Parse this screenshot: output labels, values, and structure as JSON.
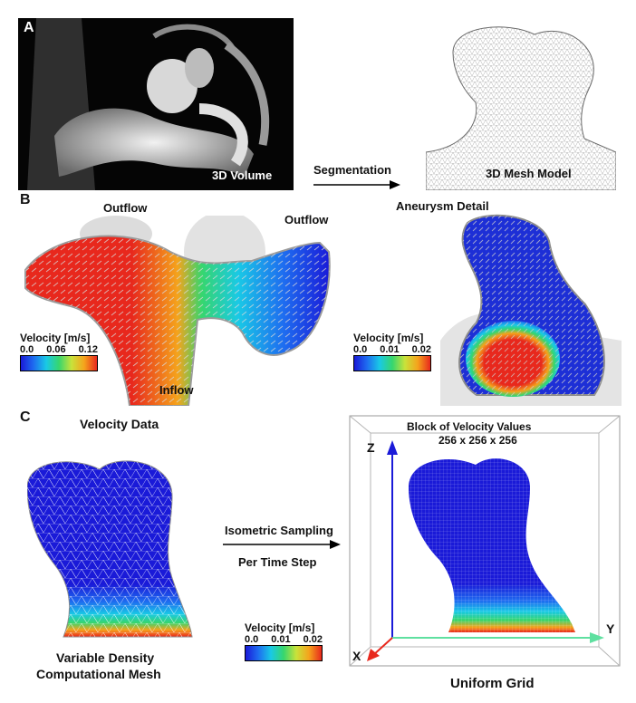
{
  "panels": {
    "a": "A",
    "b": "B",
    "c": "C"
  },
  "panel_a": {
    "volume_label": "3D Volume",
    "arrow_label": "Segmentation",
    "mesh_label": "3D Mesh Model"
  },
  "panel_b": {
    "outflow_left": "Outflow",
    "outflow_right": "Outflow",
    "inflow": "Inflow",
    "detail_title": "Aneurysm Detail",
    "colorbar_left": {
      "title": "Velocity [m/s]",
      "ticks": [
        "0.0",
        "0.06",
        "0.12"
      ]
    },
    "colorbar_right": {
      "title": "Velocity [m/s]",
      "ticks": [
        "0.0",
        "0.01",
        "0.02"
      ]
    }
  },
  "panel_c": {
    "velocity_data": "Velocity Data",
    "arrow_top": "Isometric Sampling",
    "arrow_bottom": "Per Time Step",
    "mesh_caption_line1": "Variable Density",
    "mesh_caption_line2": "Computational Mesh",
    "colorbar": {
      "title": "Velocity [m/s]",
      "ticks": [
        "0.0",
        "0.01",
        "0.02"
      ]
    },
    "block_title_line1": "Block of Velocity Values",
    "block_title_line2": "256 x 256 x 256",
    "axis_z": "Z",
    "axis_y": "Y",
    "axis_x": "X",
    "grid_caption": "Uniform Grid"
  },
  "colors": {
    "low": "#1a1ad8",
    "mid": "#36d66e",
    "high": "#e8281d"
  }
}
